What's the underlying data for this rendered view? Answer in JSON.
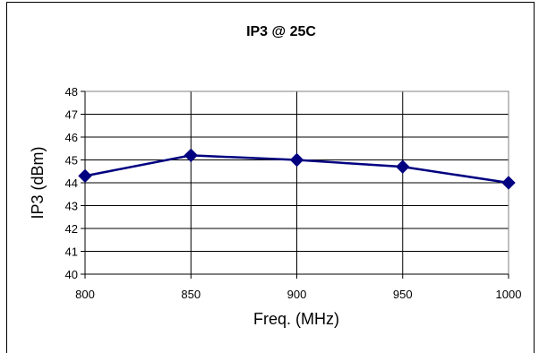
{
  "chart_data": {
    "type": "line",
    "title": "IP3 @ 25C",
    "xlabel": "Freq. (MHz)",
    "ylabel": "IP3 (dBm)",
    "x": [
      800,
      850,
      900,
      950,
      1000
    ],
    "x_tick_labels": [
      "800",
      "850",
      "900",
      "950",
      "1000"
    ],
    "y_tick_labels": [
      "40",
      "41",
      "42",
      "43",
      "44",
      "45",
      "46",
      "47",
      "48"
    ],
    "xlim": [
      800,
      1000
    ],
    "ylim": [
      40,
      48
    ],
    "grid": true,
    "legend": "none",
    "marker": "diamond",
    "series": [
      {
        "values": [
          44.3,
          45.2,
          45.0,
          44.7,
          44.0
        ],
        "color": "#000080"
      }
    ]
  }
}
